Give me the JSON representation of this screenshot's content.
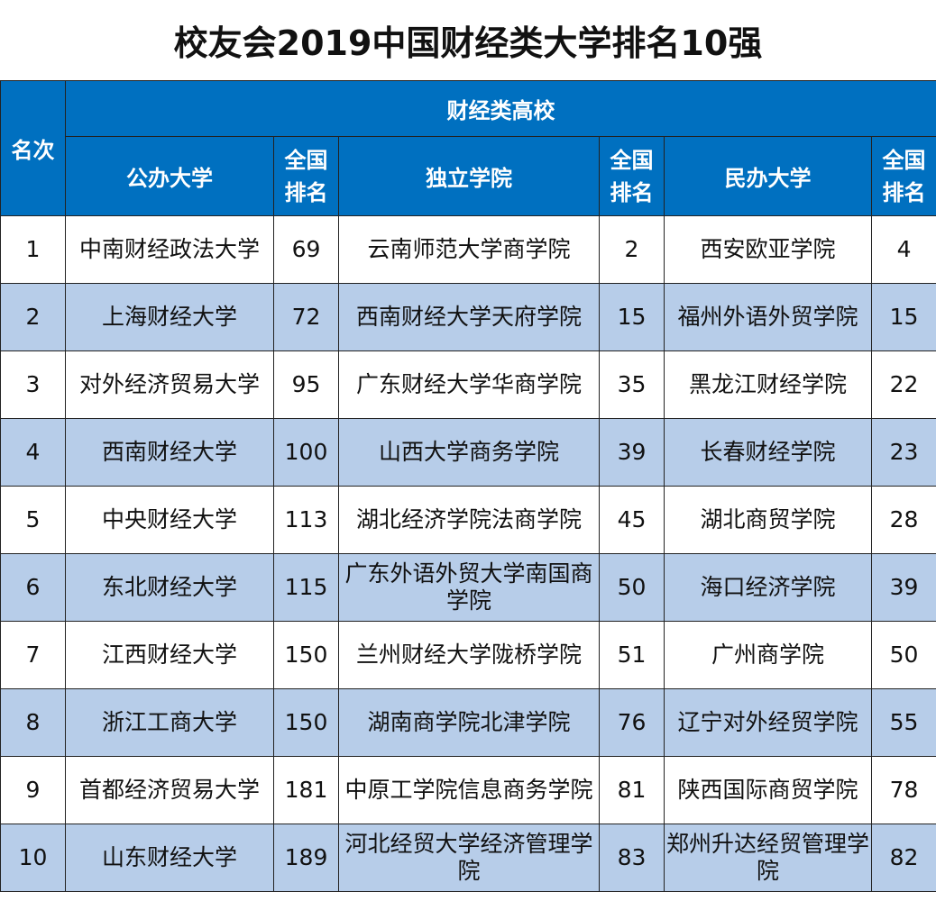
{
  "title": "校友会2019中国财经类大学排名10强",
  "header": {
    "rank": "名次",
    "group": "财经类高校",
    "public_univ": "公办大学",
    "national_rank_1": "全国\n排名",
    "independent_college": "独立学院",
    "national_rank_2": "全国\n排名",
    "private_univ": "民办大学",
    "national_rank_3": "全国\n排名"
  },
  "rows": [
    {
      "rank": "1",
      "public": "中南财经政法大学",
      "public_nat": "69",
      "independent": "云南师范大学商学院",
      "independent_nat": "2",
      "private": "西安欧亚学院",
      "private_nat": "4"
    },
    {
      "rank": "2",
      "public": "上海财经大学",
      "public_nat": "72",
      "independent": "西南财经大学天府学院",
      "independent_nat": "15",
      "private": "福州外语外贸学院",
      "private_nat": "15"
    },
    {
      "rank": "3",
      "public": "对外经济贸易大学",
      "public_nat": "95",
      "independent": "广东财经大学华商学院",
      "independent_nat": "35",
      "private": "黑龙江财经学院",
      "private_nat": "22"
    },
    {
      "rank": "4",
      "public": "西南财经大学",
      "public_nat": "100",
      "independent": "山西大学商务学院",
      "independent_nat": "39",
      "private": "长春财经学院",
      "private_nat": "23"
    },
    {
      "rank": "5",
      "public": "中央财经大学",
      "public_nat": "113",
      "independent": "湖北经济学院法商学院",
      "independent_nat": "45",
      "private": "湖北商贸学院",
      "private_nat": "28"
    },
    {
      "rank": "6",
      "public": "东北财经大学",
      "public_nat": "115",
      "independent": "广东外语外贸大学南国商学院",
      "independent_nat": "50",
      "private": "海口经济学院",
      "private_nat": "39"
    },
    {
      "rank": "7",
      "public": "江西财经大学",
      "public_nat": "150",
      "independent": "兰州财经大学陇桥学院",
      "independent_nat": "51",
      "private": "广州商学院",
      "private_nat": "50"
    },
    {
      "rank": "8",
      "public": "浙江工商大学",
      "public_nat": "150",
      "independent": "湖南商学院北津学院",
      "independent_nat": "76",
      "private": "辽宁对外经贸学院",
      "private_nat": "55"
    },
    {
      "rank": "9",
      "public": "首都经济贸易大学",
      "public_nat": "181",
      "independent": "中原工学院信息商务学院",
      "independent_nat": "81",
      "private": "陕西国际商贸学院",
      "private_nat": "78"
    },
    {
      "rank": "10",
      "public": "山东财经大学",
      "public_nat": "189",
      "independent": "河北经贸大学经济管理学院",
      "independent_nat": "83",
      "private": "郑州升达经贸管理学院",
      "private_nat": "82"
    }
  ]
}
